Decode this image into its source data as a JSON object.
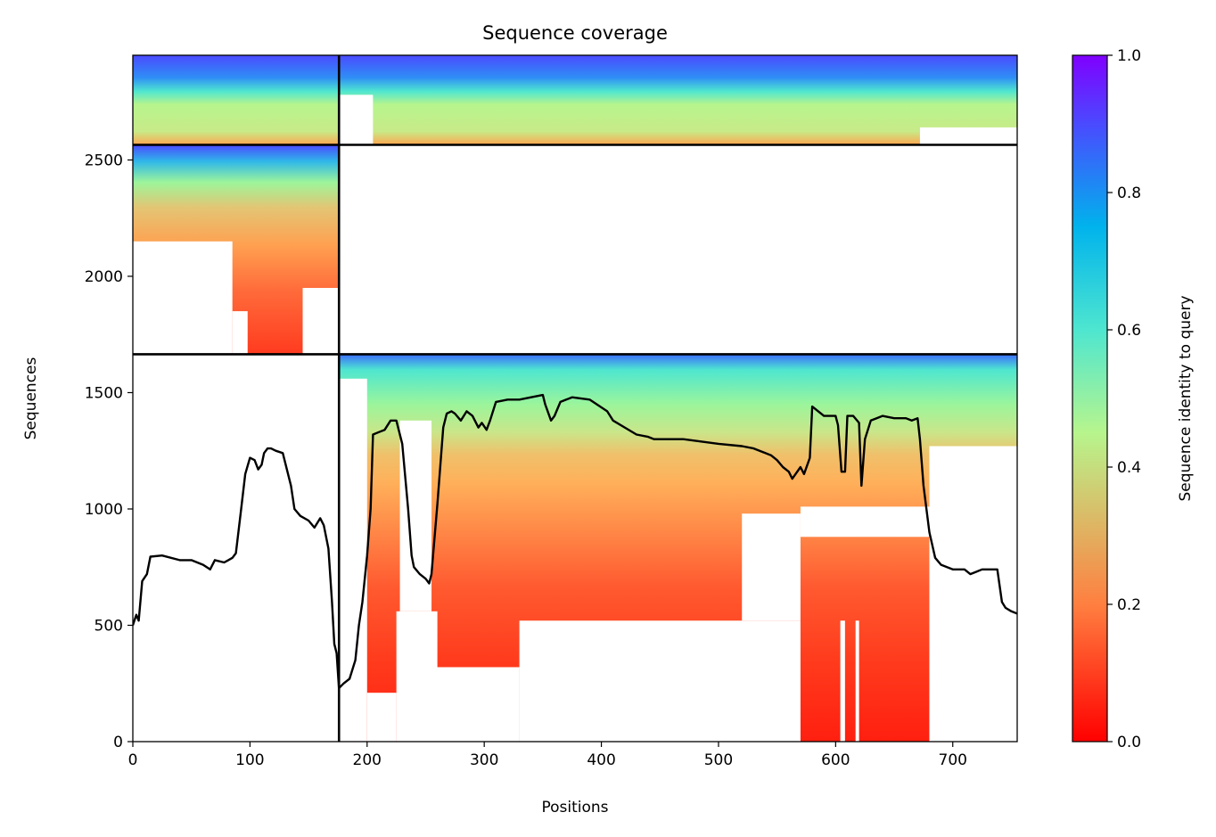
{
  "chart_data": {
    "type": "heatmap",
    "title": "Sequence coverage",
    "xlabel": "Positions",
    "ylabel": "Sequences",
    "xlim": [
      0,
      755
    ],
    "ylim": [
      0,
      2950
    ],
    "xticks": [
      "0",
      "100",
      "200",
      "300",
      "400",
      "500",
      "600",
      "700"
    ],
    "yticks": [
      "0",
      "500",
      "1000",
      "1500",
      "2000",
      "2500"
    ],
    "colorbar": {
      "label": "Sequence identity to query",
      "range": [
        0.0,
        1.0
      ],
      "ticks": [
        "0.0",
        "0.2",
        "0.4",
        "0.6",
        "0.8",
        "1.0"
      ],
      "colormap": "rainbow_r",
      "colors": [
        "#ff0000",
        "#ff7f40",
        "#b7f58d",
        "#00b3ec",
        "#8000ff"
      ]
    },
    "boundaries": {
      "vertical_x": 176,
      "horizontal_y": [
        1665,
        2565
      ]
    },
    "blocks": [
      {
        "name": "top-block",
        "x": [
          0,
          755
        ],
        "y": [
          2565,
          2950
        ],
        "identity_top": 0.92,
        "identity_bottom": 0.2
      },
      {
        "name": "middle-block",
        "x": [
          0,
          176
        ],
        "y": [
          1665,
          2565
        ],
        "identity_top": 0.9,
        "identity_bottom": 0.1
      },
      {
        "name": "bottom-block",
        "x": [
          176,
          755
        ],
        "y": [
          0,
          1665
        ],
        "identity_top": 0.9,
        "identity_bottom": 0.05
      }
    ],
    "coverage_line": {
      "color": "#000000",
      "x": [
        0,
        3,
        5,
        8,
        12,
        15,
        25,
        40,
        50,
        60,
        66,
        70,
        78,
        85,
        88,
        92,
        96,
        100,
        104,
        107,
        110,
        112,
        115,
        118,
        122,
        128,
        135,
        138,
        143,
        150,
        155,
        160,
        163,
        167,
        170,
        172,
        174,
        176,
        180,
        185,
        190,
        193,
        196,
        200,
        203,
        205,
        210,
        215,
        220,
        225,
        230,
        235,
        238,
        240,
        245,
        250,
        253,
        255,
        260,
        265,
        268,
        272,
        275,
        280,
        285,
        290,
        295,
        298,
        302,
        305,
        310,
        320,
        330,
        340,
        350,
        352,
        357,
        360,
        365,
        375,
        390,
        405,
        410,
        420,
        430,
        440,
        445,
        450,
        470,
        500,
        520,
        530,
        540,
        545,
        550,
        555,
        560,
        563,
        570,
        573,
        578,
        580,
        590,
        600,
        602,
        605,
        608,
        610,
        615,
        620,
        622,
        625,
        630,
        635,
        640,
        650,
        660,
        665,
        670,
        672,
        675,
        680,
        685,
        690,
        700,
        705,
        710,
        715,
        720,
        725,
        730,
        735,
        738,
        742,
        745,
        750,
        755
      ],
      "y": [
        500,
        545,
        520,
        690,
        720,
        795,
        800,
        780,
        780,
        760,
        740,
        780,
        770,
        790,
        810,
        980,
        1150,
        1220,
        1210,
        1170,
        1190,
        1240,
        1260,
        1260,
        1250,
        1240,
        1100,
        1000,
        970,
        950,
        920,
        960,
        930,
        830,
        600,
        420,
        380,
        230,
        250,
        270,
        350,
        500,
        600,
        800,
        1000,
        1320,
        1330,
        1340,
        1380,
        1380,
        1280,
        1000,
        800,
        750,
        720,
        700,
        680,
        720,
        1020,
        1350,
        1410,
        1420,
        1410,
        1380,
        1420,
        1400,
        1350,
        1370,
        1340,
        1380,
        1460,
        1470,
        1470,
        1480,
        1490,
        1450,
        1380,
        1400,
        1460,
        1480,
        1470,
        1420,
        1380,
        1350,
        1320,
        1310,
        1300,
        1300,
        1300,
        1280,
        1270,
        1260,
        1240,
        1230,
        1210,
        1180,
        1160,
        1130,
        1180,
        1150,
        1220,
        1440,
        1400,
        1400,
        1360,
        1160,
        1160,
        1400,
        1400,
        1370,
        1100,
        1300,
        1380,
        1390,
        1400,
        1390,
        1390,
        1380,
        1390,
        1300,
        1100,
        900,
        790,
        760,
        740,
        740,
        740,
        720,
        730,
        740,
        740,
        740,
        740,
        600,
        575,
        560,
        550
      ]
    }
  }
}
